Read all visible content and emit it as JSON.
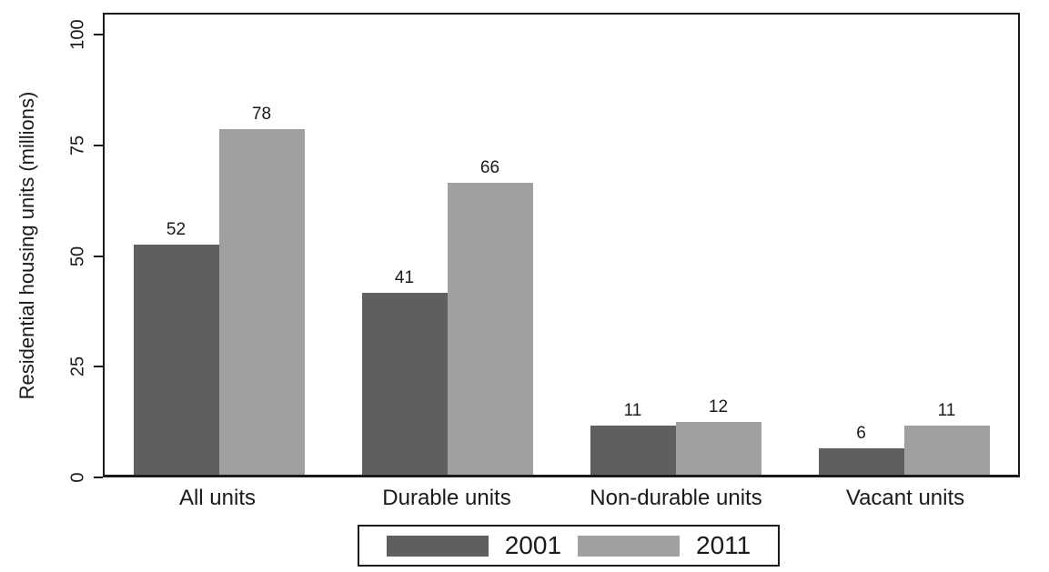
{
  "chart_data": {
    "type": "bar",
    "title": "",
    "ylabel": "Residential housing units (millions)",
    "xlabel": "",
    "categories": [
      "All units",
      "Durable units",
      "Non-durable units",
      "Vacant units"
    ],
    "series": [
      {
        "name": "2001",
        "values": [
          52,
          41,
          11,
          6
        ],
        "color": "#5f5f5f"
      },
      {
        "name": "2011",
        "values": [
          78,
          66,
          12,
          11
        ],
        "color": "#a0a0a0"
      }
    ],
    "yticks": [
      0,
      25,
      50,
      75,
      100
    ],
    "ylim": [
      0,
      105
    ],
    "grid": false,
    "legend_position": "bottom",
    "plot_border": true
  },
  "legend": {
    "items": [
      {
        "label": "2001",
        "color": "#5f5f5f"
      },
      {
        "label": "2011",
        "color": "#a0a0a0"
      }
    ]
  },
  "colors": {
    "axis": "#1a1a1a",
    "background": "#ffffff",
    "text": "#1a1a1a"
  }
}
